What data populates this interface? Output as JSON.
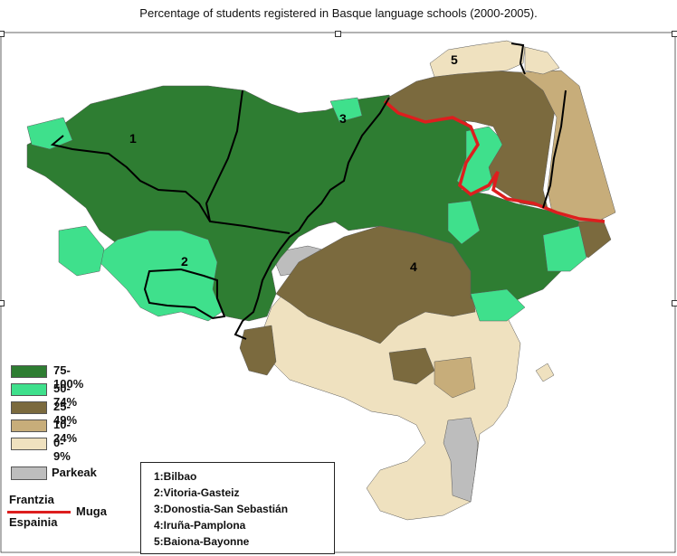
{
  "title": "Percentage of students registered in Basque language schools (2000-2005).",
  "colors": {
    "c75_100": "#2e7d32",
    "c50_74": "#3fe08c",
    "c25_49": "#7b6a3e",
    "c10_24": "#c7ad7a",
    "c0_9": "#efe1bf",
    "parks": "#bdbdbd",
    "border": "#dd1e1e",
    "province_lines": "#000000"
  },
  "legend": [
    {
      "label": "75-100%",
      "color": "#2e7d32"
    },
    {
      "label": "50-74%",
      "color": "#3fe08c"
    },
    {
      "label": "25-49%",
      "color": "#7b6a3e"
    },
    {
      "label": "10-24%",
      "color": "#c7ad7a"
    },
    {
      "label": "0-9%",
      "color": "#efe1bf"
    }
  ],
  "parks": {
    "label": "Parkeak",
    "color": "#bdbdbd"
  },
  "border_legend": {
    "top": "Frantzia",
    "bottom": "Espainia",
    "label": "Muga"
  },
  "city_labels": [
    "1",
    "2",
    "3",
    "4",
    "5"
  ],
  "cities": [
    "1:Bilbao",
    "2:Vitoria-Gasteiz",
    "3:Donostia-San Sebastián",
    "4:Iruña-Pamplona",
    "5:Baiona-Bayonne"
  ]
}
